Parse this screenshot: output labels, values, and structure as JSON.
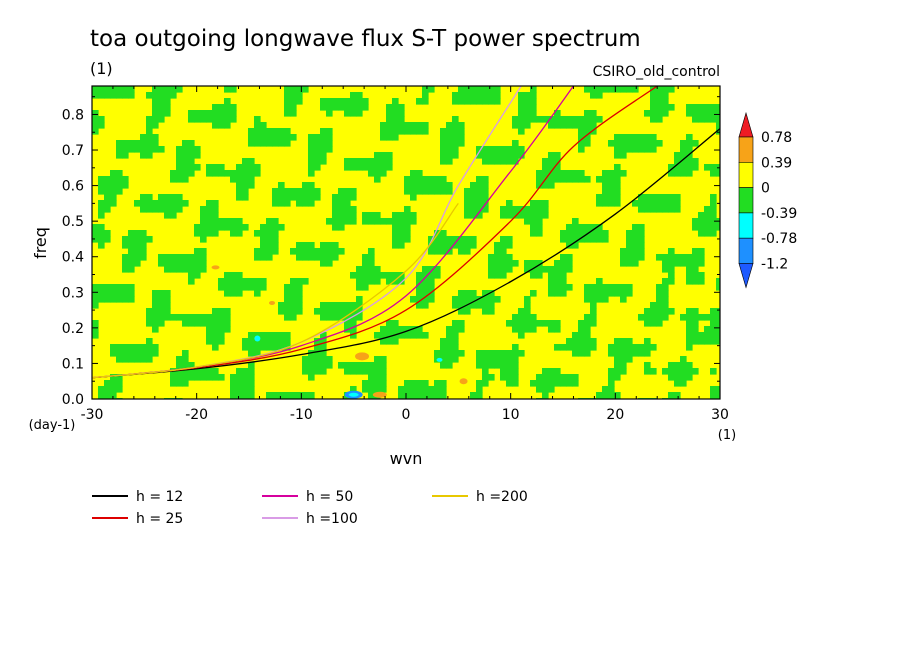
{
  "chart_data": {
    "type": "heatmap",
    "title": "toa outgoing longwave flux S-T power spectrum",
    "title_units": "(1)",
    "subtitle": "CSIRO_old_control",
    "xlabel": "wvn",
    "ylabel": "freq",
    "x_units": "(1)",
    "y_units": "(day-1)",
    "xlim": [
      -30,
      30
    ],
    "ylim": [
      0,
      0.88
    ],
    "x_ticks": [
      -30,
      -20,
      -10,
      0,
      10,
      20,
      30
    ],
    "x_tick_labels": [
      "-30",
      "-20",
      "-10",
      "0",
      "10",
      "20",
      "30"
    ],
    "y_ticks": [
      0.0,
      0.1,
      0.2,
      0.3,
      0.4,
      0.5,
      0.6,
      0.7,
      0.8
    ],
    "y_tick_labels": [
      "0.0",
      "0.1",
      "0.2",
      "0.3",
      "0.4",
      "0.5",
      "0.6",
      "0.7",
      "0.8"
    ],
    "colorbar": {
      "levels": [
        "0.78",
        "0.39",
        "0",
        "-0.39",
        "-0.78",
        "-1.2"
      ],
      "colors": [
        "#ee1c24",
        "#f7a318",
        "#ffff00",
        "#22dd22",
        "#00ffff",
        "#1e90ff",
        "#1e5aff"
      ]
    },
    "field_colors": {
      "positive": "#ffff00",
      "negative": "#22dd22",
      "strong_positive": "#f7a318",
      "strong_negative": "#00ffff",
      "extreme_negative": "#1e90ff"
    },
    "series": [
      {
        "name": "h = 12",
        "color": "#000000",
        "x": [
          -30,
          -20,
          -10,
          0,
          10,
          20,
          30
        ],
        "y": [
          0.06,
          0.085,
          0.125,
          0.19,
          0.33,
          0.52,
          0.76
        ]
      },
      {
        "name": "h = 25",
        "color": "#dd0000",
        "x": [
          -30,
          -20,
          -10,
          0,
          10,
          16,
          24
        ],
        "y": [
          0.06,
          0.088,
          0.14,
          0.25,
          0.5,
          0.71,
          0.88
        ]
      },
      {
        "name": "h = 50",
        "color": "#d6009e",
        "x": [
          -30,
          -20,
          -10,
          0,
          10,
          16
        ],
        "y": [
          0.06,
          0.09,
          0.15,
          0.29,
          0.64,
          0.88
        ]
      },
      {
        "name": "h =100",
        "color": "#d99ce6",
        "x": [
          -30,
          -20,
          -10,
          0,
          5,
          11
        ],
        "y": [
          0.06,
          0.09,
          0.16,
          0.34,
          0.6,
          0.88
        ]
      },
      {
        "name": "h =200",
        "color": "#e8c800",
        "x": [
          -30,
          -20,
          -10,
          0,
          5
        ],
        "y": [
          0.06,
          0.09,
          0.16,
          0.36,
          0.55
        ]
      }
    ]
  }
}
